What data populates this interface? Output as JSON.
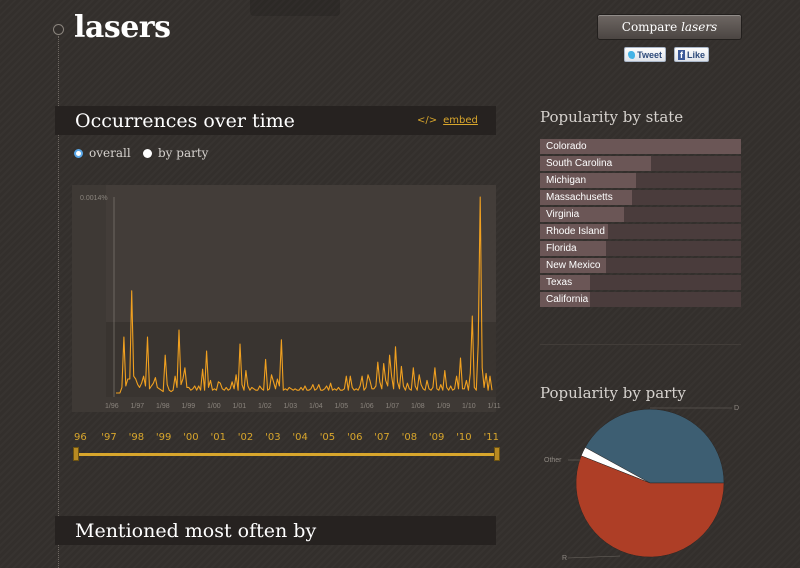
{
  "header": {
    "title": "lasers",
    "compare_prefix": "Compare",
    "compare_term": "lasers",
    "tweet_label": "Tweet",
    "like_label": "Like"
  },
  "occurrences": {
    "title": "Occurrences over time",
    "embed_icon": "</>",
    "embed_label": "embed",
    "view_options": [
      "overall",
      "by party"
    ],
    "selected_view": "overall",
    "y_max_label": "0.0014%",
    "x_tick_labels": [
      "1/96",
      "1/97",
      "1/98",
      "1/99",
      "1/00",
      "1/01",
      "1/02",
      "1/03",
      "1/04",
      "1/05",
      "1/06",
      "1/07",
      "1/08",
      "1/09",
      "1/10",
      "1/11"
    ],
    "year_labels": [
      "96",
      "'97",
      "'98",
      "'99",
      "'00",
      "'01",
      "'02",
      "'03",
      "'04",
      "'05",
      "'06",
      "'07",
      "'08",
      "'09",
      "'10",
      "'11"
    ],
    "range_start": "96",
    "range_end": "'11"
  },
  "mentioned": {
    "title": "Mentioned most often by"
  },
  "states": {
    "title": "Popularity by state",
    "items": [
      {
        "name": "Colorado",
        "value": 1.0
      },
      {
        "name": "South Carolina",
        "value": 0.55
      },
      {
        "name": "Michigan",
        "value": 0.48
      },
      {
        "name": "Massachusetts",
        "value": 0.46
      },
      {
        "name": "Virginia",
        "value": 0.42
      },
      {
        "name": "Rhode Island",
        "value": 0.34
      },
      {
        "name": "Florida",
        "value": 0.33
      },
      {
        "name": "New Mexico",
        "value": 0.33
      },
      {
        "name": "Texas",
        "value": 0.25
      },
      {
        "name": "California",
        "value": 0.25
      }
    ]
  },
  "party": {
    "title": "Popularity by party",
    "slices": [
      {
        "label": "D",
        "value": 42,
        "color": "#3d5e72"
      },
      {
        "label": "Other",
        "value": 2,
        "color": "#ffffff"
      },
      {
        "label": "R",
        "value": 56,
        "color": "#ae3e26"
      }
    ]
  },
  "colors": {
    "accent": "#d8a62c",
    "line": "#f0a020"
  },
  "chart_data": {
    "type": "line",
    "title": "",
    "ylabel": "",
    "ylim": [
      0,
      0.0014
    ],
    "y_unit": "%",
    "x_start": "1/96",
    "x_end": "1/11",
    "series": [
      {
        "values": [
          0,
          0,
          0,
          4e-05,
          0.0004,
          5e-05,
          0.0001,
          0.0001,
          0.00073,
          0.00012,
          0.0001,
          6e-05,
          4e-05,
          7e-05,
          0.00012,
          5e-05,
          0.0004,
          3e-05,
          5e-05,
          7e-05,
          0.00011,
          4e-05,
          3e-05,
          2e-05,
          1e-05,
          0.00027,
          6e-05,
          2e-05,
          1e-05,
          2e-05,
          0.00012,
          4e-05,
          0.00045,
          6e-05,
          0.0001,
          0.00018,
          4e-05,
          4e-05,
          2e-05,
          3e-05,
          5e-05,
          2e-05,
          5e-05,
          2e-05,
          0.00017,
          2e-05,
          0.0003,
          4e-05,
          9e-05,
          2e-05,
          3e-05,
          2e-05,
          8e-05,
          7e-05,
          3e-05,
          2e-05,
          4e-05,
          2e-05,
          3e-05,
          8e-05,
          3e-05,
          0.00013,
          2e-05,
          0.00035,
          6e-05,
          2e-05,
          0.00016,
          5e-05,
          2e-05,
          4e-05,
          3e-05,
          2e-05,
          2e-05,
          5e-05,
          3e-05,
          2e-05,
          0.00024,
          2e-05,
          3e-05,
          0.00013,
          8e-05,
          3e-05,
          0.0001,
          5e-05,
          0.00038,
          2e-05,
          3e-05,
          2e-05,
          4e-05,
          3e-05,
          2e-05,
          3e-05,
          2e-05,
          2e-05,
          4e-05,
          2e-05,
          5e-05,
          2e-05,
          2e-05,
          3e-05,
          6e-05,
          2e-05,
          3e-05,
          6e-05,
          2e-05,
          2e-05,
          3e-05,
          5e-05,
          2e-05,
          7e-05,
          2e-05,
          3e-05,
          2e-05,
          4e-05,
          2e-05,
          2e-05,
          3e-05,
          0.00012,
          2e-05,
          0.00012,
          4e-05,
          2e-05,
          3e-05,
          2e-05,
          5e-05,
          0.00012,
          2e-05,
          4e-05,
          0.00013,
          9e-05,
          3e-05,
          3e-05,
          5e-05,
          0.00022,
          8e-05,
          3e-05,
          0.00021,
          9e-05,
          5e-05,
          0.00027,
          0.00012,
          3e-05,
          0.00033,
          8e-05,
          3e-05,
          0.00019,
          5e-05,
          2e-05,
          7e-05,
          3e-05,
          2e-05,
          0.00018,
          5e-05,
          2e-05,
          0.00013,
          6e-05,
          3e-05,
          2e-05,
          9e-05,
          3e-05,
          2e-05,
          4e-05,
          0.00018,
          3e-05,
          2e-05,
          6e-05,
          2e-05,
          0.00016,
          4e-05,
          2e-05,
          5e-05,
          2e-05,
          3e-05,
          0.00012,
          3e-05,
          0.00025,
          3e-05,
          3e-05,
          9e-05,
          2e-05,
          0.00014,
          0.00055,
          4e-05,
          2e-05,
          0.00035,
          0.0014,
          0.00018,
          4e-05,
          0.00014,
          2e-05,
          0.00012,
          2e-05
        ]
      }
    ]
  }
}
